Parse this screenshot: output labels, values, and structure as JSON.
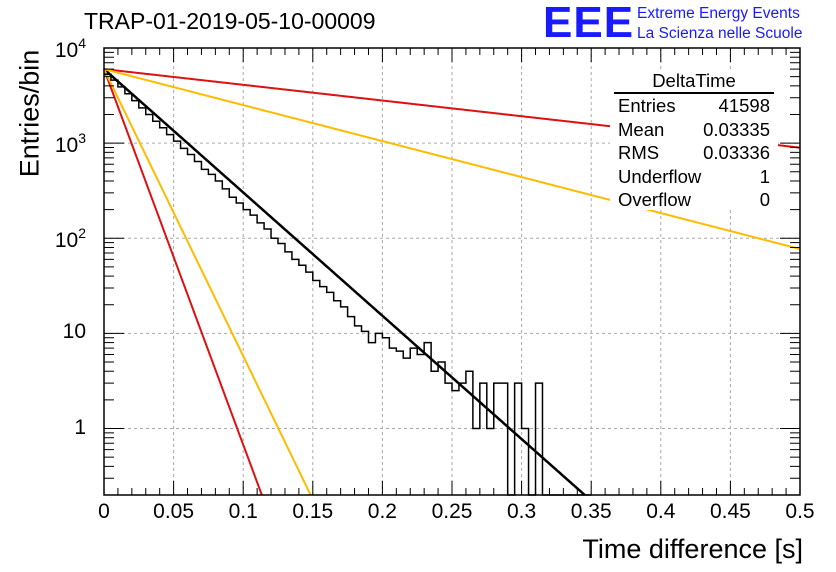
{
  "title": "TRAP-01-2019-05-10-00009",
  "logo": {
    "letters": "EEE",
    "line1": "Extreme Energy Events",
    "line2": "La Scienza nelle Scuole",
    "color": "#1a1aff"
  },
  "stats": {
    "title": "DeltaTime",
    "rows": [
      {
        "label": "Entries",
        "value": "41598"
      },
      {
        "label": "Mean",
        "value": "0.03335"
      },
      {
        "label": "RMS",
        "value": "0.03336"
      },
      {
        "label": "Underflow",
        "value": "1"
      },
      {
        "label": "Overflow",
        "value": "0"
      }
    ]
  },
  "chart_data": {
    "type": "line",
    "xlabel": "Time difference [s]",
    "ylabel": "Entries/bin",
    "xlim": [
      0,
      0.5
    ],
    "ylim": [
      0.2,
      10000
    ],
    "y_scale": "log",
    "grid": true,
    "x_ticks": [
      "0",
      "0.05",
      "0.1",
      "0.15",
      "0.2",
      "0.25",
      "0.3",
      "0.35",
      "0.4",
      "0.45",
      "0.5"
    ],
    "y_ticks": [
      {
        "value": 1,
        "label": "1",
        "exp": ""
      },
      {
        "value": 10,
        "label": "10",
        "exp": ""
      },
      {
        "value": 100,
        "label": "10",
        "exp": "2"
      },
      {
        "value": 1000,
        "label": "10",
        "exp": "3"
      },
      {
        "value": 10000,
        "label": "10",
        "exp": "4"
      }
    ],
    "histogram": {
      "bin_width": 0.005,
      "color": "#000000",
      "values": [
        5300,
        4600,
        3900,
        3300,
        2800,
        2350,
        2000,
        1700,
        1450,
        1230,
        1050,
        880,
        760,
        640,
        530,
        470,
        400,
        330,
        270,
        235,
        200,
        175,
        145,
        125,
        100,
        88,
        72,
        60,
        52,
        44,
        36,
        31,
        27,
        22,
        19,
        15,
        12,
        10.5,
        8,
        10,
        9,
        7,
        6.5,
        5.5,
        7,
        6,
        8,
        4,
        5,
        3,
        2.5,
        3,
        4,
        1,
        3,
        1,
        3,
        3,
        0.15,
        3,
        1,
        0.15,
        3,
        0.15,
        0.15,
        0.15,
        0.15,
        0.15,
        0.15,
        0.15
      ]
    },
    "fit_curves": [
      {
        "color": "#000000",
        "A": 6000,
        "tau": 0.0335
      },
      {
        "color": "#dd1111",
        "A": 6000,
        "tau": 0.011
      },
      {
        "color": "#ffbb00",
        "A": 6000,
        "tau": 0.0144
      },
      {
        "color": "#dd1111",
        "A": 6000,
        "tau": 0.263
      },
      {
        "color": "#ffbb00",
        "A": 6000,
        "tau": 0.1148
      }
    ]
  }
}
